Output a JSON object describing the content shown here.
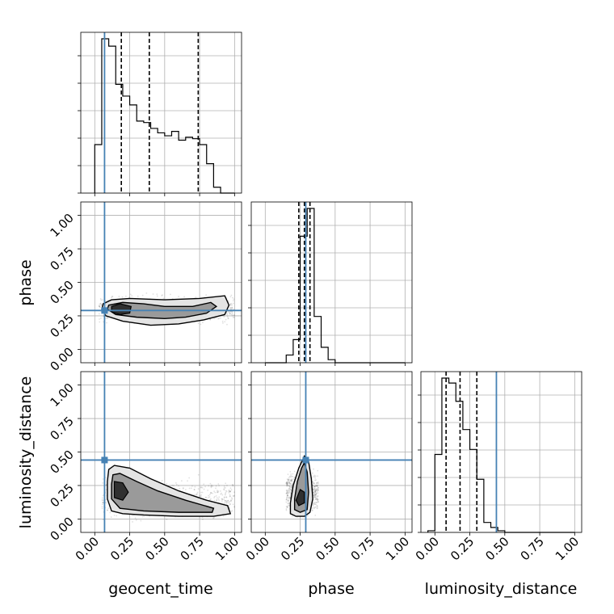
{
  "chart_data": {
    "type": "corner",
    "parameters": [
      "geocent_time",
      "phase",
      "luminosity_distance"
    ],
    "axis_labels": [
      "geocent_time",
      "phase",
      "luminosity_distance"
    ],
    "tick_labels": [
      "0.00",
      "0.25",
      "0.50",
      "0.75",
      "1.00"
    ],
    "xlim": [
      -0.1,
      1.05
    ],
    "ylim": [
      -0.1,
      1.1
    ],
    "grid": true,
    "truth_color": "#4682b4",
    "truths": [
      0.07,
      0.29,
      0.44
    ],
    "quantiles": [
      [
        0.19,
        0.39,
        0.74
      ],
      [
        0.24,
        0.28,
        0.32
      ],
      [
        0.08,
        0.18,
        0.3
      ]
    ],
    "histograms": [
      {
        "edges_start": 0.0,
        "bin_width": 0.05,
        "counts": [
          0.33,
          1.05,
          1.0,
          0.74,
          0.66,
          0.6,
          0.49,
          0.48,
          0.44,
          0.41,
          0.39,
          0.42,
          0.36,
          0.38,
          0.37,
          0.33,
          0.2,
          0.04,
          0.0,
          0.0
        ]
      },
      {
        "edges_start": 0.0,
        "bin_width": 0.05,
        "counts": [
          0.0,
          0.0,
          0.0,
          0.05,
          0.15,
          0.82,
          1.0,
          0.3,
          0.1,
          0.02,
          0.0,
          0.0,
          0.0,
          0.0,
          0.0,
          0.0,
          0.0,
          0.0,
          0.0,
          0.0
        ]
      },
      {
        "edges_start": -0.05,
        "bin_width": 0.05,
        "counts": [
          0.01,
          0.47,
          0.93,
          0.9,
          0.79,
          0.62,
          0.5,
          0.32,
          0.06,
          0.03,
          0.01,
          0.0,
          0.0,
          0.0,
          0.0,
          0.0,
          0.0,
          0.0,
          0.0,
          0.0,
          0.0
        ]
      }
    ],
    "panels_2d": [
      {
        "x_param": "geocent_time",
        "y_param": "phase",
        "outer_contour": [
          [
            0.06,
            0.34
          ],
          [
            0.12,
            0.37
          ],
          [
            0.25,
            0.38
          ],
          [
            0.5,
            0.37
          ],
          [
            0.75,
            0.38
          ],
          [
            0.93,
            0.4
          ],
          [
            0.96,
            0.33
          ],
          [
            0.93,
            0.26
          ],
          [
            0.78,
            0.22
          ],
          [
            0.6,
            0.19
          ],
          [
            0.4,
            0.18
          ],
          [
            0.2,
            0.21
          ],
          [
            0.08,
            0.25
          ],
          [
            0.05,
            0.3
          ]
        ],
        "inner_contour": [
          [
            0.1,
            0.33
          ],
          [
            0.2,
            0.35
          ],
          [
            0.35,
            0.34
          ],
          [
            0.5,
            0.32
          ],
          [
            0.7,
            0.32
          ],
          [
            0.83,
            0.35
          ],
          [
            0.87,
            0.32
          ],
          [
            0.8,
            0.27
          ],
          [
            0.65,
            0.24
          ],
          [
            0.5,
            0.23
          ],
          [
            0.3,
            0.24
          ],
          [
            0.15,
            0.26
          ],
          [
            0.09,
            0.3
          ]
        ],
        "core_contour": [
          [
            0.12,
            0.32
          ],
          [
            0.18,
            0.34
          ],
          [
            0.26,
            0.32
          ],
          [
            0.25,
            0.27
          ],
          [
            0.18,
            0.26
          ],
          [
            0.12,
            0.28
          ]
        ],
        "point_cloud": {
          "x_range": [
            0.03,
            1.0
          ],
          "y_center": 0.3,
          "y_spread": 0.09
        }
      },
      {
        "x_param": "geocent_time",
        "y_param": "luminosity_distance",
        "outer_contour": [
          [
            0.1,
            0.37
          ],
          [
            0.14,
            0.4
          ],
          [
            0.25,
            0.38
          ],
          [
            0.4,
            0.3
          ],
          [
            0.6,
            0.21
          ],
          [
            0.8,
            0.14
          ],
          [
            0.95,
            0.1
          ],
          [
            0.97,
            0.04
          ],
          [
            0.85,
            0.02
          ],
          [
            0.6,
            0.02
          ],
          [
            0.35,
            0.03
          ],
          [
            0.2,
            0.04
          ],
          [
            0.12,
            0.06
          ],
          [
            0.09,
            0.15
          ],
          [
            0.09,
            0.28
          ]
        ],
        "inner_contour": [
          [
            0.13,
            0.33
          ],
          [
            0.18,
            0.34
          ],
          [
            0.3,
            0.28
          ],
          [
            0.45,
            0.21
          ],
          [
            0.65,
            0.14
          ],
          [
            0.85,
            0.08
          ],
          [
            0.84,
            0.05
          ],
          [
            0.6,
            0.05
          ],
          [
            0.35,
            0.06
          ],
          [
            0.18,
            0.08
          ],
          [
            0.12,
            0.15
          ],
          [
            0.12,
            0.26
          ]
        ],
        "core_contour": [
          [
            0.14,
            0.28
          ],
          [
            0.2,
            0.27
          ],
          [
            0.24,
            0.2
          ],
          [
            0.2,
            0.14
          ],
          [
            0.14,
            0.16
          ]
        ],
        "point_cloud": {
          "x_range": [
            0.05,
            1.0
          ],
          "y_center": 0.15,
          "y_spread": 0.13
        }
      },
      {
        "x_param": "phase",
        "y_param": "luminosity_distance",
        "outer_contour": [
          [
            0.28,
            0.47
          ],
          [
            0.31,
            0.43
          ],
          [
            0.33,
            0.3
          ],
          [
            0.34,
            0.15
          ],
          [
            0.32,
            0.05
          ],
          [
            0.28,
            0.02
          ],
          [
            0.22,
            0.02
          ],
          [
            0.18,
            0.04
          ],
          [
            0.18,
            0.12
          ],
          [
            0.2,
            0.25
          ],
          [
            0.24,
            0.38
          ]
        ],
        "inner_contour": [
          [
            0.28,
            0.42
          ],
          [
            0.3,
            0.35
          ],
          [
            0.31,
            0.2
          ],
          [
            0.3,
            0.07
          ],
          [
            0.25,
            0.05
          ],
          [
            0.21,
            0.07
          ],
          [
            0.21,
            0.15
          ],
          [
            0.23,
            0.28
          ],
          [
            0.26,
            0.38
          ]
        ],
        "core_contour": [
          [
            0.25,
            0.22
          ],
          [
            0.28,
            0.2
          ],
          [
            0.28,
            0.12
          ],
          [
            0.24,
            0.1
          ],
          [
            0.22,
            0.14
          ]
        ],
        "point_cloud": {
          "x_range": [
            0.15,
            0.38
          ],
          "y_center": 0.2,
          "y_spread": 0.14
        }
      }
    ]
  }
}
